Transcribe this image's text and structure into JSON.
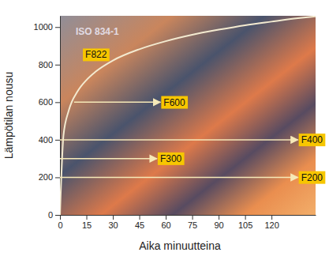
{
  "chart_data": {
    "type": "line",
    "title": "ISO 834-1",
    "x_label": "Aika minuutteina",
    "y_label": "Lämpötilan nousu",
    "x": [
      0,
      2,
      5,
      10,
      15,
      20,
      30,
      45,
      60,
      75,
      90,
      105,
      120,
      135,
      145
    ],
    "values": [
      0,
      424,
      556,
      658,
      718,
      761,
      822,
      882,
      925,
      959,
      986,
      1010,
      1029,
      1047,
      1057
    ],
    "color": "#f3ead0",
    "xlim": [
      0,
      145
    ],
    "ylim": [
      0,
      1060
    ],
    "xticks": [
      0,
      15,
      30,
      45,
      60,
      75,
      90,
      105,
      120
    ],
    "yticks": [
      0,
      200,
      400,
      600,
      800,
      1000
    ],
    "annotations": [
      {
        "text": "F822",
        "x": 13,
        "y": 853
      },
      {
        "text": "F600",
        "y": 600,
        "x_start": 8,
        "x_end": 57
      },
      {
        "text": "F400",
        "y": 400,
        "x_start": 0,
        "x_end": 135
      },
      {
        "text": "F300",
        "y": 300,
        "x_start": 0,
        "x_end": 55
      },
      {
        "text": "F200",
        "y": 200,
        "x_start": 0,
        "x_end": 135
      }
    ]
  }
}
